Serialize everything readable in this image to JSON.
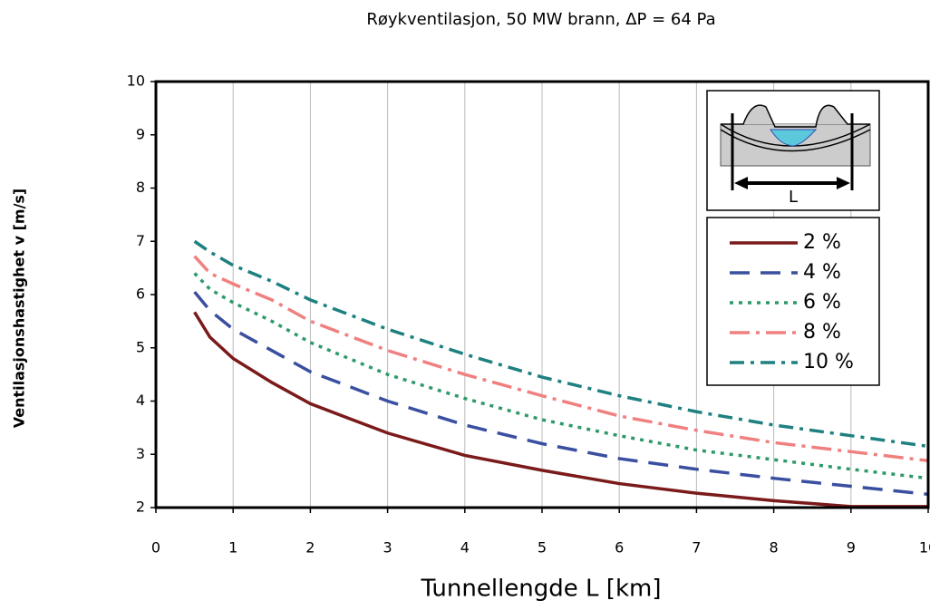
{
  "chart_data": {
    "type": "line",
    "title": "Røykventilasjon, 50 MW brann, ΔP = 64 Pa",
    "xlabel": "Tunnellengde L [km]",
    "ylabel": "Ventilasjonshastighet v [m/s]",
    "inset_label": "L",
    "x": [
      0.5,
      0.7,
      1,
      1.5,
      2,
      3,
      4,
      5,
      6,
      7,
      8,
      9,
      10
    ],
    "series": [
      {
        "name": "2 %",
        "color": "#7b1a1a",
        "dash": "",
        "values": [
          5.67,
          5.2,
          4.8,
          4.35,
          3.95,
          3.4,
          2.98,
          2.7,
          2.45,
          2.27,
          2.13,
          2.02,
          2.02
        ]
      },
      {
        "name": "4 %",
        "color": "#3a4fa0",
        "dash": "22 12",
        "values": [
          6.05,
          5.7,
          5.35,
          4.95,
          4.55,
          4.0,
          3.55,
          3.2,
          2.92,
          2.72,
          2.55,
          2.4,
          2.25
        ]
      },
      {
        "name": "6 %",
        "color": "#2e9a6a",
        "dash": "4 6",
        "values": [
          6.4,
          6.1,
          5.85,
          5.5,
          5.1,
          4.5,
          4.05,
          3.65,
          3.35,
          3.08,
          2.9,
          2.72,
          2.55
        ]
      },
      {
        "name": "8 %",
        "color": "#f08080",
        "dash": "22 7 4 7",
        "values": [
          6.72,
          6.4,
          6.2,
          5.9,
          5.5,
          4.95,
          4.5,
          4.1,
          3.72,
          3.45,
          3.22,
          3.05,
          2.88
        ]
      },
      {
        "name": "10 %",
        "color": "#1f8080",
        "dash": "16 7 4 7",
        "values": [
          7.0,
          6.8,
          6.55,
          6.25,
          5.9,
          5.35,
          4.88,
          4.45,
          4.1,
          3.8,
          3.55,
          3.35,
          3.15
        ]
      }
    ],
    "xlim": [
      0,
      10
    ],
    "xticks": [
      0,
      1,
      2,
      3,
      4,
      5,
      6,
      7,
      8,
      9,
      10
    ],
    "ylim": [
      2,
      10
    ],
    "yticks": [
      2,
      3,
      4,
      5,
      6,
      7,
      8,
      9,
      10
    ],
    "grid": "x"
  }
}
